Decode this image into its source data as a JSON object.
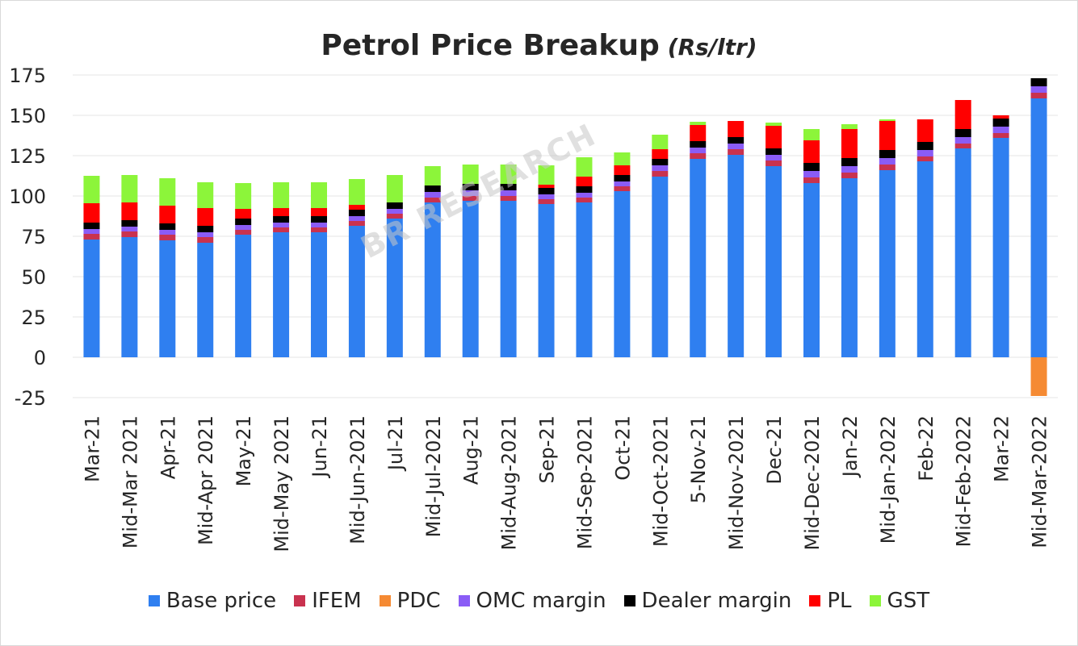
{
  "chart_data": {
    "type": "bar",
    "stacked": true,
    "title": "Petrol Price Breakup",
    "title_unit": "(Rs/ltr)",
    "xlabel": "",
    "ylabel": "",
    "ylim": [
      -25,
      175
    ],
    "yticks": [
      -25,
      0,
      25,
      50,
      75,
      100,
      125,
      150,
      175
    ],
    "grid": true,
    "legend_position": "bottom",
    "watermark": "BR RESEARCH",
    "categories": [
      "Mar-21",
      "Mid-Mar 2021",
      "Apr-21",
      "Mid-Apr 2021",
      "May-21",
      "Mid-May 2021",
      "Jun-21",
      "Mid-Jun-2021",
      "Jul-21",
      "Mid-Jul-2021",
      "Aug-21",
      "Mid-Aug-2021",
      "Sep-21",
      "Mid-Sep-2021",
      "Oct-21",
      "Mid-Oct-2021",
      "5-Nov-21",
      "Mid-Nov-2021",
      "Dec-21",
      "Mid-Dec-2021",
      "Jan-22",
      "Mid-Jan-2022",
      "Feb-22",
      "Mid-Feb-2022",
      "Mar-22",
      "Mid-Mar-2022"
    ],
    "series": [
      {
        "name": "Base price",
        "color": "#2f7ff0",
        "values": [
          73,
          74.5,
          72.5,
          71,
          76,
          77.5,
          77.5,
          81.5,
          86,
          96,
          97,
          97,
          95,
          96,
          103,
          112,
          123,
          125.5,
          118.5,
          108,
          111,
          116,
          121.5,
          129.5,
          136,
          160.5
        ]
      },
      {
        "name": "IFEM",
        "color": "#c9324f",
        "values": [
          3.5,
          3.5,
          3.5,
          3.5,
          3,
          3,
          3,
          3,
          3,
          3,
          3,
          3,
          3,
          3,
          3,
          3.5,
          3.5,
          3.5,
          3.5,
          3.5,
          3.5,
          3.5,
          3,
          3,
          3,
          3.5
        ]
      },
      {
        "name": "PDC",
        "color": "#f58a33",
        "values": [
          0,
          0,
          0,
          0,
          0,
          0,
          0,
          0,
          0,
          0,
          0,
          0,
          0,
          0,
          0,
          0,
          0,
          0,
          0,
          0,
          0,
          0,
          0,
          0,
          0,
          -24
        ]
      },
      {
        "name": "OMC margin",
        "color": "#8a5cf6",
        "values": [
          3,
          3,
          3,
          3,
          3,
          3,
          3,
          3,
          3,
          3.5,
          3.5,
          3.5,
          3,
          3,
          3,
          3.5,
          3.5,
          3.5,
          3.5,
          4,
          4,
          4,
          4,
          4,
          4,
          4
        ]
      },
      {
        "name": "Dealer margin",
        "color": "#000000",
        "values": [
          4,
          4,
          4,
          4,
          4,
          4,
          4,
          4,
          4,
          4,
          4,
          4,
          4,
          4,
          4,
          4,
          4,
          4,
          4,
          5,
          5,
          5,
          5,
          5,
          5,
          5
        ]
      },
      {
        "name": "PL",
        "color": "#ff0000",
        "values": [
          12,
          11,
          11,
          11,
          6,
          5,
          5,
          3,
          0,
          0,
          0,
          0,
          2,
          6,
          6,
          6,
          10,
          10,
          14,
          14,
          18,
          18,
          14,
          18,
          2,
          0
        ]
      },
      {
        "name": "GST",
        "color": "#8cf53a",
        "values": [
          17,
          17,
          17,
          16,
          16,
          16,
          16,
          16,
          17,
          12,
          12,
          12,
          12,
          12,
          8,
          9,
          2,
          0,
          2,
          7,
          3,
          1,
          0,
          0,
          0,
          0
        ]
      }
    ]
  }
}
